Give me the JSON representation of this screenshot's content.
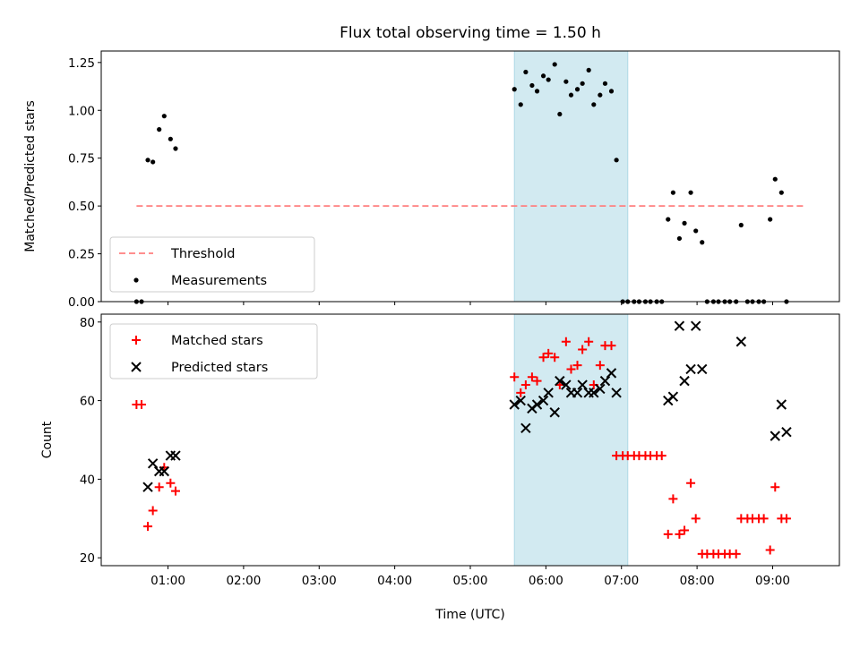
{
  "chart_data": {
    "type": "scatter",
    "title": "Flux total observing time = 1.50 h",
    "xlabel": "Time (UTC)",
    "x_range": [
      "00:07",
      "09:53"
    ],
    "x_ticks": [
      "01:00",
      "02:00",
      "03:00",
      "04:00",
      "05:00",
      "06:00",
      "07:00",
      "08:00",
      "09:00"
    ],
    "shaded_interval": {
      "start": "05:35",
      "end": "07:05",
      "color": "#add8e6"
    },
    "panels": [
      {
        "id": "ratio",
        "ylabel": "Matched/Predicted stars",
        "ylim": [
          0,
          1.31
        ],
        "y_ticks": [
          "0.00",
          "0.25",
          "0.50",
          "0.75",
          "1.00",
          "1.25"
        ],
        "legend": {
          "position": "lower-left",
          "entries": [
            "Threshold",
            "Measurements"
          ]
        },
        "series": [
          {
            "name": "Threshold",
            "style": "dashed-line",
            "color": "#ff7f7f",
            "points": [
              [
                "00:35",
                0.5
              ],
              [
                "09:25",
                0.5
              ]
            ]
          },
          {
            "name": "Measurements",
            "style": "dot",
            "color": "#000000",
            "points": [
              [
                "00:35",
                0
              ],
              [
                "00:39",
                0
              ],
              [
                "00:44",
                0.74
              ],
              [
                "00:48",
                0.73
              ],
              [
                "00:53",
                0.9
              ],
              [
                "00:57",
                0.97
              ],
              [
                "01:02",
                0.85
              ],
              [
                "01:06",
                0.8
              ],
              [
                "05:35",
                1.11
              ],
              [
                "05:40",
                1.03
              ],
              [
                "05:44",
                1.2
              ],
              [
                "05:49",
                1.13
              ],
              [
                "05:53",
                1.1
              ],
              [
                "05:58",
                1.18
              ],
              [
                "06:02",
                1.16
              ],
              [
                "06:07",
                1.24
              ],
              [
                "06:11",
                0.98
              ],
              [
                "06:16",
                1.15
              ],
              [
                "06:20",
                1.08
              ],
              [
                "06:25",
                1.11
              ],
              [
                "06:29",
                1.14
              ],
              [
                "06:34",
                1.21
              ],
              [
                "06:38",
                1.03
              ],
              [
                "06:43",
                1.08
              ],
              [
                "06:47",
                1.14
              ],
              [
                "06:52",
                1.1
              ],
              [
                "06:56",
                0.74
              ],
              [
                "07:01",
                0
              ],
              [
                "07:05",
                0
              ],
              [
                "07:10",
                0
              ],
              [
                "07:14",
                0
              ],
              [
                "07:19",
                0
              ],
              [
                "07:23",
                0
              ],
              [
                "07:28",
                0
              ],
              [
                "07:32",
                0
              ],
              [
                "07:37",
                0.43
              ],
              [
                "07:41",
                0.57
              ],
              [
                "07:46",
                0.33
              ],
              [
                "07:50",
                0.41
              ],
              [
                "07:55",
                0.57
              ],
              [
                "07:59",
                0.37
              ],
              [
                "08:04",
                0.31
              ],
              [
                "08:08",
                0
              ],
              [
                "08:13",
                0
              ],
              [
                "08:17",
                0
              ],
              [
                "08:22",
                0
              ],
              [
                "08:26",
                0
              ],
              [
                "08:31",
                0
              ],
              [
                "08:35",
                0.4
              ],
              [
                "08:40",
                0
              ],
              [
                "08:44",
                0
              ],
              [
                "08:49",
                0
              ],
              [
                "08:53",
                0
              ],
              [
                "08:58",
                0.43
              ],
              [
                "09:02",
                0.64
              ],
              [
                "09:07",
                0.57
              ],
              [
                "09:11",
                0
              ]
            ]
          }
        ]
      },
      {
        "id": "count",
        "ylabel": "Count",
        "ylim": [
          18,
          82
        ],
        "y_ticks": [
          "20",
          "40",
          "60",
          "80"
        ],
        "legend": {
          "position": "upper-left",
          "entries": [
            "Matched stars",
            "Predicted stars"
          ]
        },
        "series": [
          {
            "name": "Matched stars",
            "style": "plus",
            "color": "#ff0000",
            "points": [
              [
                "00:35",
                59
              ],
              [
                "00:39",
                59
              ],
              [
                "00:44",
                28
              ],
              [
                "00:48",
                32
              ],
              [
                "00:53",
                38
              ],
              [
                "00:57",
                43
              ],
              [
                "01:02",
                39
              ],
              [
                "01:06",
                37
              ],
              [
                "05:35",
                66
              ],
              [
                "05:40",
                62
              ],
              [
                "05:44",
                64
              ],
              [
                "05:49",
                66
              ],
              [
                "05:53",
                65
              ],
              [
                "05:58",
                71
              ],
              [
                "06:02",
                72
              ],
              [
                "06:07",
                71
              ],
              [
                "06:11",
                64
              ],
              [
                "06:16",
                75
              ],
              [
                "06:20",
                68
              ],
              [
                "06:25",
                69
              ],
              [
                "06:29",
                73
              ],
              [
                "06:34",
                75
              ],
              [
                "06:38",
                64
              ],
              [
                "06:43",
                69
              ],
              [
                "06:47",
                74
              ],
              [
                "06:52",
                74
              ],
              [
                "06:56",
                46
              ],
              [
                "07:01",
                46
              ],
              [
                "07:05",
                46
              ],
              [
                "07:10",
                46
              ],
              [
                "07:14",
                46
              ],
              [
                "07:19",
                46
              ],
              [
                "07:23",
                46
              ],
              [
                "07:28",
                46
              ],
              [
                "07:32",
                46
              ],
              [
                "07:37",
                26
              ],
              [
                "07:41",
                35
              ],
              [
                "07:46",
                26
              ],
              [
                "07:50",
                27
              ],
              [
                "07:55",
                39
              ],
              [
                "07:59",
                30
              ],
              [
                "08:04",
                21
              ],
              [
                "08:08",
                21
              ],
              [
                "08:13",
                21
              ],
              [
                "08:17",
                21
              ],
              [
                "08:22",
                21
              ],
              [
                "08:26",
                21
              ],
              [
                "08:31",
                21
              ],
              [
                "08:35",
                30
              ],
              [
                "08:40",
                30
              ],
              [
                "08:44",
                30
              ],
              [
                "08:49",
                30
              ],
              [
                "08:53",
                30
              ],
              [
                "08:58",
                22
              ],
              [
                "09:02",
                38
              ],
              [
                "09:07",
                30
              ],
              [
                "09:11",
                30
              ]
            ]
          },
          {
            "name": "Predicted stars",
            "style": "x",
            "color": "#000000",
            "points": [
              [
                "00:44",
                38
              ],
              [
                "00:48",
                44
              ],
              [
                "00:53",
                42
              ],
              [
                "00:57",
                42
              ],
              [
                "01:02",
                46
              ],
              [
                "01:06",
                46
              ],
              [
                "05:35",
                59
              ],
              [
                "05:40",
                60
              ],
              [
                "05:44",
                53
              ],
              [
                "05:49",
                58
              ],
              [
                "05:53",
                59
              ],
              [
                "05:58",
                60
              ],
              [
                "06:02",
                62
              ],
              [
                "06:07",
                57
              ],
              [
                "06:11",
                65
              ],
              [
                "06:16",
                64
              ],
              [
                "06:20",
                62
              ],
              [
                "06:25",
                62
              ],
              [
                "06:29",
                64
              ],
              [
                "06:34",
                62
              ],
              [
                "06:38",
                62
              ],
              [
                "06:43",
                63
              ],
              [
                "06:47",
                65
              ],
              [
                "06:52",
                67
              ],
              [
                "06:56",
                62
              ],
              [
                "07:37",
                60
              ],
              [
                "07:41",
                61
              ],
              [
                "07:46",
                79
              ],
              [
                "07:50",
                65
              ],
              [
                "07:55",
                68
              ],
              [
                "07:59",
                79
              ],
              [
                "08:04",
                68
              ],
              [
                "08:35",
                75
              ],
              [
                "09:02",
                51
              ],
              [
                "09:07",
                59
              ],
              [
                "09:11",
                52
              ]
            ]
          }
        ]
      }
    ]
  }
}
